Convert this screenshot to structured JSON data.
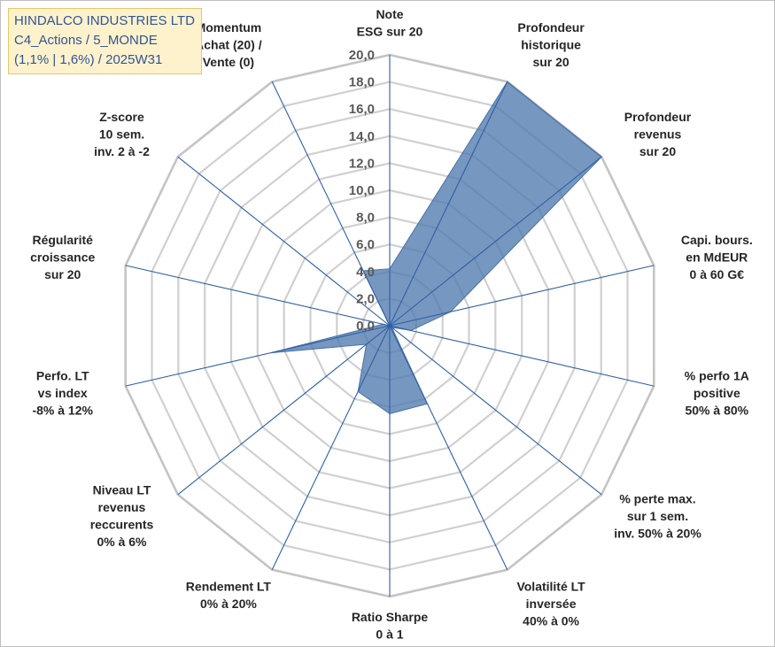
{
  "title": {
    "line1": "HINDALCO INDUSTRIES LTD",
    "line2": "C4_Actions / 5_MONDE",
    "line3": "(1,1% | 1,6%) / 2025W31"
  },
  "chart_data": {
    "type": "radar",
    "ylim": [
      0,
      20
    ],
    "tick_step": 2,
    "ticks": [
      "0,0",
      "2,0",
      "4,0",
      "6,0",
      "8,0",
      "10,0",
      "12,0",
      "14,0",
      "16,0",
      "18,0",
      "20,0"
    ],
    "grid": true,
    "axes": [
      [
        "Note",
        "ESG sur 20"
      ],
      [
        "Profondeur",
        "historique",
        "sur 20"
      ],
      [
        "Profondeur",
        "revenus",
        "sur 20"
      ],
      [
        "Capi. bours.",
        "en MdEUR",
        "0 à 60 G€"
      ],
      [
        "% perfo 1A",
        "positive",
        "50% à 80%"
      ],
      [
        "% perte max.",
        "sur 1 sem.",
        "inv. 50% à 20%"
      ],
      [
        "Volatilité LT",
        "inversée",
        "40% à 0%"
      ],
      [
        "Ratio Sharpe",
        "0 à 1"
      ],
      [
        "Rendement LT",
        "0% à 20%"
      ],
      [
        "Niveau LT",
        "revenus",
        "reccurents",
        "0% à 6%"
      ],
      [
        "Perfo. LT",
        "vs index",
        "-8% à 12%"
      ],
      [
        "Régularité",
        "croissance",
        "sur 20"
      ],
      [
        "Z-score",
        "10 sem.",
        "inv. 2 à -2"
      ],
      [
        "Momentum",
        "Achat (20) /",
        "Vente (0)"
      ]
    ],
    "values": [
      4.2,
      20.0,
      20.0,
      4.6,
      1.6,
      0.2,
      6.4,
      6.5,
      5.4,
      2.2,
      9.0,
      0.5,
      0.0,
      4.5
    ],
    "colors": {
      "fill": "#4f7aad",
      "fill_opacity": 0.78,
      "series_stroke": "#4a72a6",
      "grid": "#d0d0d0",
      "outer_grid": "#c4c4c4",
      "spoke": "#2f5fa8"
    }
  }
}
